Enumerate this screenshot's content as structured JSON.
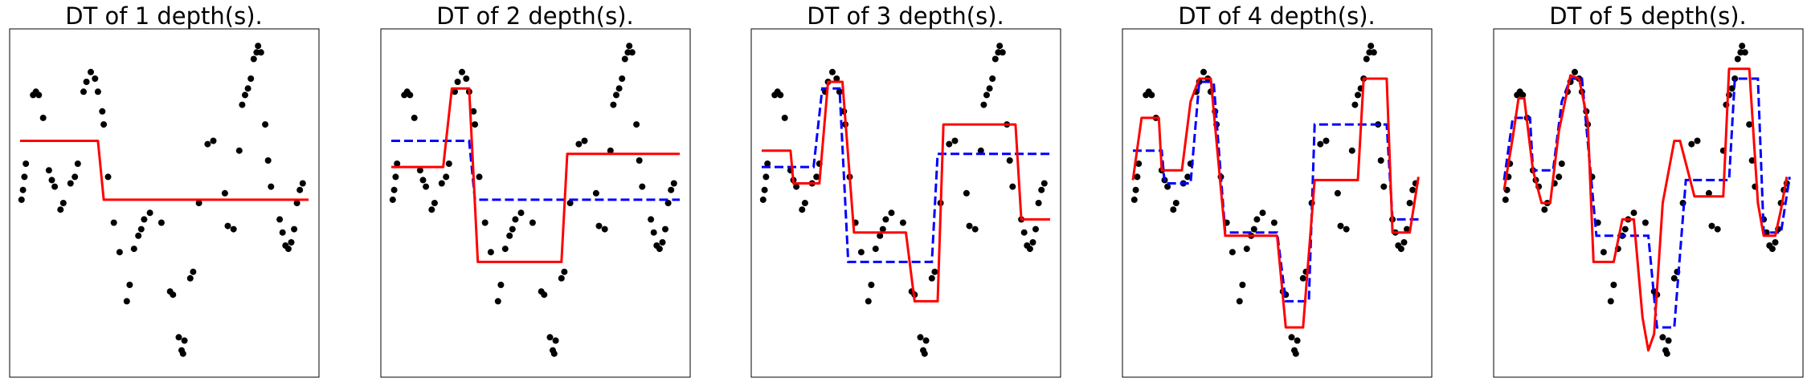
{
  "figure": {
    "panels": [
      {
        "title": "DT of 1 depth(s)."
      },
      {
        "title": "DT of 2 depth(s)."
      },
      {
        "title": "DT of 3 depth(s)."
      },
      {
        "title": "DT of 4 depth(s)."
      },
      {
        "title": "DT of 5 depth(s)."
      }
    ]
  },
  "chart_data": {
    "type": "scatter",
    "axes_ticks_visible": false,
    "grid": false,
    "xlim": [
      0,
      1
    ],
    "ylim": [
      0,
      1
    ],
    "colors": {
      "points": "#000000",
      "current_fit": "#ff0000",
      "previous_fit": "#0000ff"
    },
    "points": [
      {
        "x": 0.005,
        "y": 0.51
      },
      {
        "x": 0.01,
        "y": 0.54
      },
      {
        "x": 0.015,
        "y": 0.58
      },
      {
        "x": 0.02,
        "y": 0.62
      },
      {
        "x": 0.045,
        "y": 0.83
      },
      {
        "x": 0.055,
        "y": 0.84
      },
      {
        "x": 0.065,
        "y": 0.83
      },
      {
        "x": 0.08,
        "y": 0.76
      },
      {
        "x": 0.1,
        "y": 0.6
      },
      {
        "x": 0.11,
        "y": 0.57
      },
      {
        "x": 0.12,
        "y": 0.55
      },
      {
        "x": 0.14,
        "y": 0.48
      },
      {
        "x": 0.15,
        "y": 0.5
      },
      {
        "x": 0.175,
        "y": 0.56
      },
      {
        "x": 0.19,
        "y": 0.58
      },
      {
        "x": 0.2,
        "y": 0.62
      },
      {
        "x": 0.22,
        "y": 0.84
      },
      {
        "x": 0.23,
        "y": 0.87
      },
      {
        "x": 0.245,
        "y": 0.9
      },
      {
        "x": 0.26,
        "y": 0.88
      },
      {
        "x": 0.27,
        "y": 0.84
      },
      {
        "x": 0.285,
        "y": 0.78
      },
      {
        "x": 0.29,
        "y": 0.74
      },
      {
        "x": 0.305,
        "y": 0.58
      },
      {
        "x": 0.325,
        "y": 0.44
      },
      {
        "x": 0.345,
        "y": 0.35
      },
      {
        "x": 0.37,
        "y": 0.2
      },
      {
        "x": 0.38,
        "y": 0.25
      },
      {
        "x": 0.395,
        "y": 0.36
      },
      {
        "x": 0.41,
        "y": 0.4
      },
      {
        "x": 0.42,
        "y": 0.42
      },
      {
        "x": 0.43,
        "y": 0.45
      },
      {
        "x": 0.45,
        "y": 0.47
      },
      {
        "x": 0.49,
        "y": 0.44
      },
      {
        "x": 0.52,
        "y": 0.23
      },
      {
        "x": 0.53,
        "y": 0.22
      },
      {
        "x": 0.55,
        "y": 0.09
      },
      {
        "x": 0.56,
        "y": 0.05
      },
      {
        "x": 0.565,
        "y": 0.04
      },
      {
        "x": 0.57,
        "y": 0.08
      },
      {
        "x": 0.59,
        "y": 0.27
      },
      {
        "x": 0.6,
        "y": 0.29
      },
      {
        "x": 0.62,
        "y": 0.5
      },
      {
        "x": 0.65,
        "y": 0.68
      },
      {
        "x": 0.67,
        "y": 0.69
      },
      {
        "x": 0.71,
        "y": 0.53
      },
      {
        "x": 0.72,
        "y": 0.43
      },
      {
        "x": 0.74,
        "y": 0.42
      },
      {
        "x": 0.76,
        "y": 0.66
      },
      {
        "x": 0.77,
        "y": 0.8
      },
      {
        "x": 0.78,
        "y": 0.83
      },
      {
        "x": 0.79,
        "y": 0.85
      },
      {
        "x": 0.8,
        "y": 0.88
      },
      {
        "x": 0.81,
        "y": 0.94
      },
      {
        "x": 0.82,
        "y": 0.96
      },
      {
        "x": 0.825,
        "y": 0.98
      },
      {
        "x": 0.835,
        "y": 0.96
      },
      {
        "x": 0.85,
        "y": 0.74
      },
      {
        "x": 0.86,
        "y": 0.63
      },
      {
        "x": 0.87,
        "y": 0.55
      },
      {
        "x": 0.9,
        "y": 0.45
      },
      {
        "x": 0.91,
        "y": 0.41
      },
      {
        "x": 0.92,
        "y": 0.37
      },
      {
        "x": 0.93,
        "y": 0.36
      },
      {
        "x": 0.94,
        "y": 0.38
      },
      {
        "x": 0.95,
        "y": 0.42
      },
      {
        "x": 0.96,
        "y": 0.5
      },
      {
        "x": 0.97,
        "y": 0.54
      },
      {
        "x": 0.98,
        "y": 0.56
      }
    ],
    "panels": [
      {
        "depth": 1,
        "current_fit": [
          [
            0.0,
            0.69
          ],
          [
            0.27,
            0.69
          ],
          [
            0.29,
            0.51
          ],
          [
            1.0,
            0.51
          ]
        ],
        "previous_fit": []
      },
      {
        "depth": 2,
        "current_fit": [
          [
            0.0,
            0.61
          ],
          [
            0.18,
            0.61
          ],
          [
            0.21,
            0.85
          ],
          [
            0.27,
            0.85
          ],
          [
            0.3,
            0.32
          ],
          [
            0.59,
            0.32
          ],
          [
            0.61,
            0.65
          ],
          [
            1.0,
            0.65
          ]
        ],
        "previous_fit": [
          [
            0.0,
            0.69
          ],
          [
            0.27,
            0.69
          ],
          [
            0.29,
            0.51
          ],
          [
            1.0,
            0.51
          ]
        ]
      },
      {
        "depth": 3,
        "current_fit": [
          [
            0.0,
            0.66
          ],
          [
            0.1,
            0.66
          ],
          [
            0.11,
            0.56
          ],
          [
            0.2,
            0.56
          ],
          [
            0.23,
            0.87
          ],
          [
            0.28,
            0.87
          ],
          [
            0.32,
            0.41
          ],
          [
            0.5,
            0.41
          ],
          [
            0.53,
            0.2
          ],
          [
            0.61,
            0.2
          ],
          [
            0.63,
            0.74
          ],
          [
            0.88,
            0.74
          ],
          [
            0.9,
            0.45
          ],
          [
            1.0,
            0.45
          ]
        ],
        "previous_fit": [
          [
            0.0,
            0.61
          ],
          [
            0.18,
            0.61
          ],
          [
            0.21,
            0.85
          ],
          [
            0.27,
            0.85
          ],
          [
            0.3,
            0.32
          ],
          [
            0.59,
            0.32
          ],
          [
            0.61,
            0.65
          ],
          [
            1.0,
            0.65
          ]
        ]
      },
      {
        "depth": 4,
        "current_fit": [
          [
            0.0,
            0.57
          ],
          [
            0.03,
            0.76
          ],
          [
            0.09,
            0.76
          ],
          [
            0.1,
            0.6
          ],
          [
            0.17,
            0.6
          ],
          [
            0.2,
            0.81
          ],
          [
            0.23,
            0.88
          ],
          [
            0.27,
            0.88
          ],
          [
            0.32,
            0.4
          ],
          [
            0.5,
            0.4
          ],
          [
            0.53,
            0.12
          ],
          [
            0.59,
            0.12
          ],
          [
            0.63,
            0.57
          ],
          [
            0.78,
            0.57
          ],
          [
            0.8,
            0.88
          ],
          [
            0.88,
            0.88
          ],
          [
            0.9,
            0.41
          ],
          [
            0.96,
            0.41
          ],
          [
            0.99,
            0.58
          ]
        ],
        "previous_fit": [
          [
            0.0,
            0.66
          ],
          [
            0.1,
            0.66
          ],
          [
            0.11,
            0.56
          ],
          [
            0.2,
            0.56
          ],
          [
            0.23,
            0.87
          ],
          [
            0.28,
            0.87
          ],
          [
            0.32,
            0.41
          ],
          [
            0.5,
            0.41
          ],
          [
            0.53,
            0.2
          ],
          [
            0.61,
            0.2
          ],
          [
            0.63,
            0.74
          ],
          [
            0.88,
            0.74
          ],
          [
            0.9,
            0.45
          ],
          [
            1.0,
            0.45
          ]
        ]
      },
      {
        "depth": 5,
        "current_fit": [
          [
            0.0,
            0.54
          ],
          [
            0.03,
            0.7
          ],
          [
            0.05,
            0.82
          ],
          [
            0.07,
            0.82
          ],
          [
            0.1,
            0.6
          ],
          [
            0.13,
            0.5
          ],
          [
            0.16,
            0.5
          ],
          [
            0.19,
            0.72
          ],
          [
            0.23,
            0.89
          ],
          [
            0.26,
            0.88
          ],
          [
            0.29,
            0.75
          ],
          [
            0.31,
            0.32
          ],
          [
            0.38,
            0.32
          ],
          [
            0.41,
            0.45
          ],
          [
            0.45,
            0.45
          ],
          [
            0.48,
            0.15
          ],
          [
            0.5,
            0.05
          ],
          [
            0.52,
            0.1
          ],
          [
            0.55,
            0.5
          ],
          [
            0.59,
            0.69
          ],
          [
            0.61,
            0.69
          ],
          [
            0.66,
            0.52
          ],
          [
            0.76,
            0.52
          ],
          [
            0.78,
            0.91
          ],
          [
            0.85,
            0.91
          ],
          [
            0.88,
            0.5
          ],
          [
            0.9,
            0.4
          ],
          [
            0.94,
            0.4
          ],
          [
            0.96,
            0.48
          ],
          [
            0.98,
            0.58
          ]
        ],
        "previous_fit": [
          [
            0.0,
            0.57
          ],
          [
            0.03,
            0.76
          ],
          [
            0.09,
            0.76
          ],
          [
            0.1,
            0.6
          ],
          [
            0.17,
            0.6
          ],
          [
            0.2,
            0.81
          ],
          [
            0.23,
            0.88
          ],
          [
            0.27,
            0.88
          ],
          [
            0.32,
            0.4
          ],
          [
            0.5,
            0.4
          ],
          [
            0.53,
            0.12
          ],
          [
            0.59,
            0.12
          ],
          [
            0.63,
            0.57
          ],
          [
            0.78,
            0.57
          ],
          [
            0.8,
            0.88
          ],
          [
            0.88,
            0.88
          ],
          [
            0.9,
            0.41
          ],
          [
            0.96,
            0.41
          ],
          [
            0.99,
            0.58
          ]
        ]
      }
    ]
  }
}
